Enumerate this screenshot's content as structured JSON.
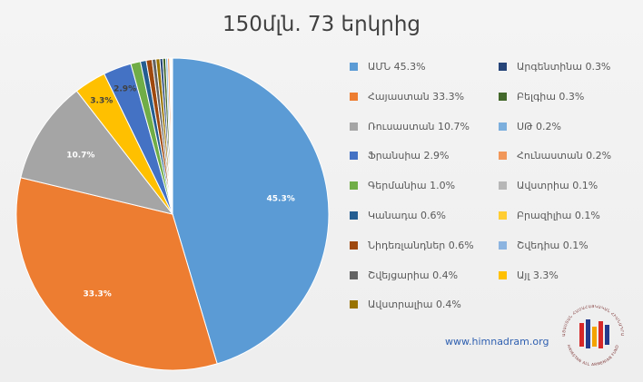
{
  "title": "150մլն. 73 երկրից",
  "website": "www.himnadram.org",
  "logo_text": [
    "ՀԱՅԱՍՏԱՆ ՀԱՄԱՀԱՅԿԱԿԱՆ ՀԻՄՆԱԴՐԱՄ",
    "HAYASTAN ALL ARMENIAN FUND"
  ],
  "chart_data": {
    "type": "pie",
    "title": "150մլն. 73 երկրից",
    "slices": [
      {
        "label": "ԱՄՆ",
        "value": 45.3,
        "display": "45.3%",
        "color": "#5b9bd5",
        "data_label": "45.3%"
      },
      {
        "label": "Հայաստան",
        "value": 33.3,
        "display": "33.3%",
        "color": "#ed7d31",
        "data_label": "33.3%"
      },
      {
        "label": "Ռուսաստան",
        "value": 10.7,
        "display": "10.7%",
        "color": "#a5a5a5",
        "data_label": "10.7%"
      },
      {
        "label": "Այլ",
        "value": 3.3,
        "display": "3.3%",
        "color": "#ffc000",
        "data_label": "3.3%"
      },
      {
        "label": "Ֆրանսիա",
        "value": 2.9,
        "display": "2.9%",
        "color": "#4472c4",
        "data_label": "2.9%"
      },
      {
        "label": "Գերմանիա",
        "value": 1.0,
        "display": "1.0%",
        "color": "#70ad47",
        "data_label": ""
      },
      {
        "label": "Կանադա",
        "value": 0.6,
        "display": "0.6%",
        "color": "#255e91",
        "data_label": ""
      },
      {
        "label": "Նիդեռլանդներ",
        "value": 0.6,
        "display": "0.6%",
        "color": "#9e480e",
        "data_label": ""
      },
      {
        "label": "Շվեյցարիա",
        "value": 0.4,
        "display": "0.4%",
        "color": "#636363",
        "data_label": ""
      },
      {
        "label": "Ավստրալիա",
        "value": 0.4,
        "display": "0.4%",
        "color": "#997300",
        "data_label": ""
      },
      {
        "label": "Արգենտինա",
        "value": 0.3,
        "display": "0.3%",
        "color": "#264478",
        "data_label": ""
      },
      {
        "label": "Բելգիա",
        "value": 0.3,
        "display": "0.3%",
        "color": "#43682b",
        "data_label": ""
      },
      {
        "label": "ՍԹ",
        "value": 0.2,
        "display": "0.2%",
        "color": "#7cafdd",
        "data_label": ""
      },
      {
        "label": "Հունաստան",
        "value": 0.2,
        "display": "0.2%",
        "color": "#f1975a",
        "data_label": ""
      },
      {
        "label": "Ավստրիա",
        "value": 0.1,
        "display": "0.1%",
        "color": "#b7b7b7",
        "data_label": ""
      },
      {
        "label": "Բրազիլիա",
        "value": 0.1,
        "display": "0.1%",
        "color": "#ffcd33",
        "data_label": ""
      },
      {
        "label": "Շվեդիա",
        "value": 0.1,
        "display": "0.1%",
        "color": "#8cb4e0",
        "data_label": ""
      }
    ],
    "legend": {
      "placement": "right",
      "columns": [
        [
          {
            "label": "ԱՄՆ",
            "value": "45.3%",
            "color": "#5b9bd5"
          },
          {
            "label": "Հայաստան",
            "value": "33.3%",
            "color": "#ed7d31"
          },
          {
            "label": "Ռուսաստան",
            "value": "10.7%",
            "color": "#a5a5a5"
          },
          {
            "label": "Ֆրանսիա",
            "value": "2.9%",
            "color": "#4472c4"
          },
          {
            "label": "Գերմանիա",
            "value": "1.0%",
            "color": "#70ad47"
          },
          {
            "label": "Կանադա",
            "value": "0.6%",
            "color": "#255e91"
          },
          {
            "label": "Նիդեռլանդներ",
            "value": "0.6%",
            "color": "#9e480e"
          },
          {
            "label": "Շվեյցարիա",
            "value": "0.4%",
            "color": "#636363"
          },
          {
            "label": "Ավստրալիա",
            "value": "0.4%",
            "color": "#997300"
          }
        ],
        [
          {
            "label": "Արգենտինա",
            "value": "0.3%",
            "color": "#264478"
          },
          {
            "label": "Բելգիա",
            "value": "0.3%",
            "color": "#43682b"
          },
          {
            "label": "ՍԹ",
            "value": "0.2%",
            "color": "#7cafdd"
          },
          {
            "label": "Հունաստան",
            "value": "0.2%",
            "color": "#f1975a"
          },
          {
            "label": "Ավստրիա",
            "value": "0.1%",
            "color": "#b7b7b7"
          },
          {
            "label": "Բրազիլիա",
            "value": "0.1%",
            "color": "#ffcd33"
          },
          {
            "label": "Շվեդիա",
            "value": "0.1%",
            "color": "#8cb4e0"
          },
          {
            "label": "Այլ",
            "value": "3.3%",
            "color": "#ffc000"
          }
        ]
      ]
    }
  }
}
